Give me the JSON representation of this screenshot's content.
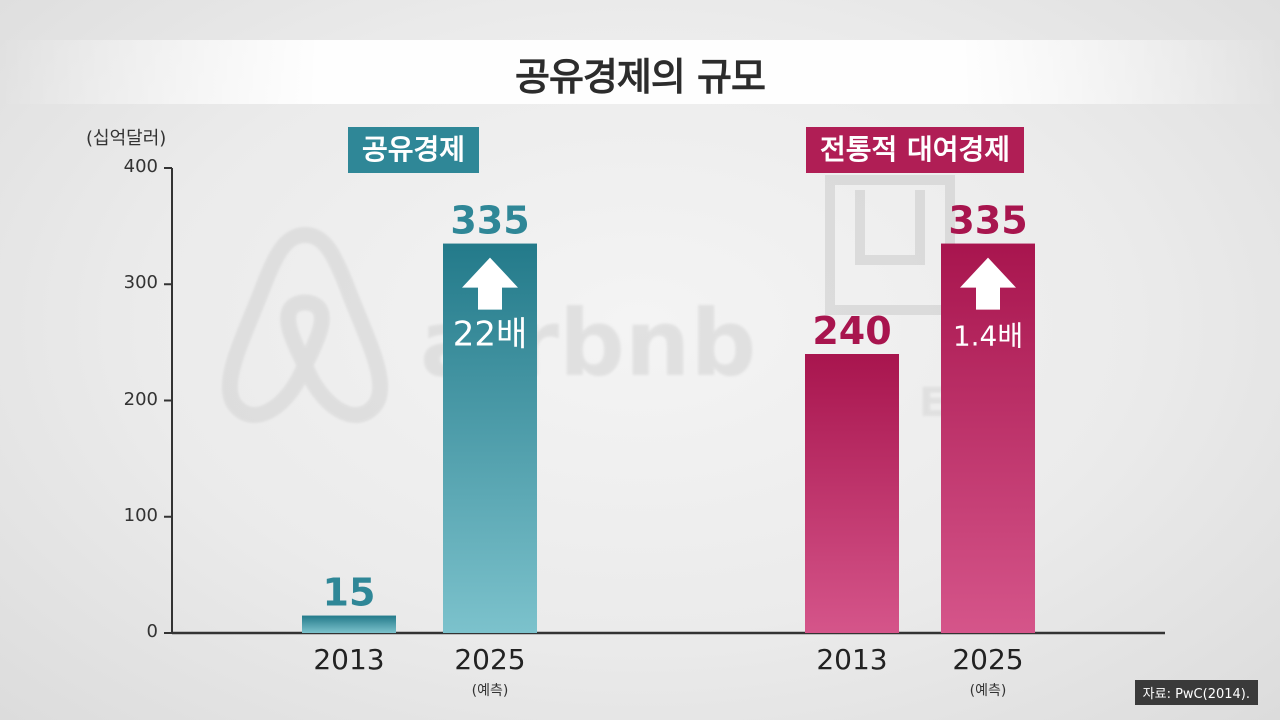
{
  "title": "공유경제의 규모",
  "unit_label": "(십억달러)",
  "source": "자료: PwC(2014).",
  "background_logos": {
    "airbnb_text": "airbnb",
    "uber_text": "UBER"
  },
  "colors": {
    "teal": "#2f8797",
    "crimson": "#b01e55"
  },
  "chart_data": {
    "type": "bar",
    "title": "공유경제의 규모",
    "ylabel": "(십억달러)",
    "ylim": [
      0,
      400
    ],
    "yticks": [
      "0",
      "100",
      "200",
      "300",
      "400"
    ],
    "groups": [
      {
        "name": "공유경제",
        "color": "#2f8797",
        "categories": [
          "2013",
          "2025"
        ],
        "sublabels": [
          "",
          "(예측)"
        ],
        "values": [
          15,
          335
        ],
        "value_labels": [
          "15",
          "335"
        ],
        "growth_label": "22배"
      },
      {
        "name": "전통적 대여경제",
        "color": "#b01e55",
        "categories": [
          "2013",
          "2025"
        ],
        "sublabels": [
          "",
          "(예측)"
        ],
        "values": [
          240,
          335
        ],
        "value_labels": [
          "240",
          "335"
        ],
        "growth_label": "1.4배"
      }
    ]
  }
}
